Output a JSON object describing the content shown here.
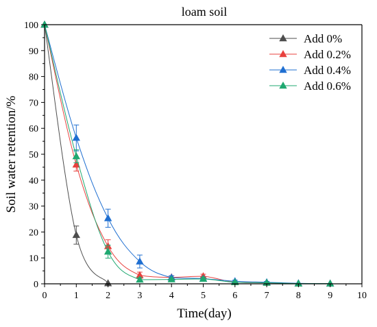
{
  "chart_data": {
    "type": "line",
    "title": "loam soil",
    "xlabel": "Time(day)",
    "ylabel": "Soil water retention/%",
    "xlim": [
      0,
      10
    ],
    "ylim": [
      0,
      100
    ],
    "x_ticks": [
      "0",
      "1",
      "2",
      "3",
      "4",
      "5",
      "6",
      "7",
      "8",
      "9",
      "10"
    ],
    "y_ticks": [
      "0",
      "10",
      "20",
      "30",
      "40",
      "50",
      "60",
      "70",
      "80",
      "90",
      "100"
    ],
    "grid": false,
    "legend_position": "top-right",
    "marker": "triangle",
    "series": [
      {
        "name": "Add 0%",
        "color": "#4d4d4d",
        "x": [
          0,
          1,
          2
        ],
        "y": [
          100,
          18.8,
          0.2
        ],
        "err": [
          0,
          3.5,
          0
        ]
      },
      {
        "name": "Add 0.2%",
        "color": "#e8413e",
        "x": [
          0,
          1,
          2,
          3,
          4,
          5,
          6,
          7,
          8,
          9
        ],
        "y": [
          100,
          46,
          14.5,
          3.3,
          2.5,
          2.9,
          0.6,
          0.4,
          0.1,
          0.1
        ],
        "err": [
          0,
          2.5,
          2.5,
          1.2,
          0.6,
          0.8,
          0.3,
          0.2,
          0,
          0
        ]
      },
      {
        "name": "Add 0.4%",
        "color": "#1f6fd1",
        "x": [
          0,
          1,
          2,
          3,
          4,
          5,
          6,
          7,
          8,
          9
        ],
        "y": [
          100,
          56.3,
          25.3,
          8.6,
          2.4,
          2.0,
          1.0,
          0.6,
          0.2,
          0.1
        ],
        "err": [
          0,
          5,
          3.5,
          2.5,
          0.7,
          0.6,
          0.4,
          0.3,
          0,
          0
        ]
      },
      {
        "name": "Add 0.6%",
        "color": "#1fa870",
        "x": [
          0,
          1,
          2,
          3,
          4,
          5,
          6,
          7,
          8,
          9
        ],
        "y": [
          100,
          49.2,
          12.4,
          1.6,
          1.7,
          1.9,
          0.6,
          0.4,
          0.1,
          0.1
        ],
        "err": [
          0,
          2.5,
          2.5,
          0.8,
          0.5,
          0.6,
          0.3,
          0.2,
          0,
          0
        ]
      }
    ]
  }
}
